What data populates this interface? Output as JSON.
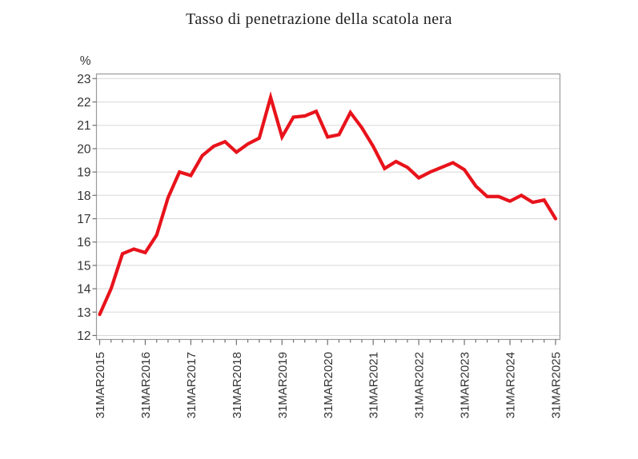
{
  "colors": {
    "line": "#e8131b",
    "grid": "#d8d8d8",
    "frame": "#9a9a9a",
    "tick": "#707070",
    "label_text": "#333333",
    "title_text": "#1f1f1f",
    "background": "#ffffff"
  },
  "chart_data": {
    "type": "line",
    "title": "Tasso di penetrazione della scatola nera",
    "xlabel": "",
    "ylabel": "%",
    "ylim": [
      12,
      23
    ],
    "y_ticks": [
      12,
      13,
      14,
      15,
      16,
      17,
      18,
      19,
      20,
      21,
      22,
      23
    ],
    "x_major_tick_labels": [
      "31MAR2015",
      "31MAR2016",
      "31MAR2017",
      "31MAR2018",
      "31MAR2019",
      "31MAR2020",
      "31MAR2021",
      "31MAR2022",
      "31MAR2023",
      "31MAR2024",
      "31MAR2025"
    ],
    "x_minor_ticks_per_major": 4,
    "grid": "horizontal-only",
    "legend": "none",
    "categories": [
      "31MAR2015",
      "30JUN2015",
      "30SEP2015",
      "31DEC2015",
      "31MAR2016",
      "30JUN2016",
      "30SEP2016",
      "31DEC2016",
      "31MAR2017",
      "30JUN2017",
      "30SEP2017",
      "31DEC2017",
      "31MAR2018",
      "30JUN2018",
      "30SEP2018",
      "31DEC2018",
      "31MAR2019",
      "30JUN2019",
      "30SEP2019",
      "31DEC2019",
      "31MAR2020",
      "30JUN2020",
      "30SEP2020",
      "31DEC2020",
      "31MAR2021",
      "30JUN2021",
      "30SEP2021",
      "31DEC2021",
      "31MAR2022",
      "30JUN2022",
      "30SEP2022",
      "31DEC2022",
      "31MAR2023",
      "30JUN2023",
      "30SEP2023",
      "31DEC2023",
      "31MAR2024",
      "30JUN2024",
      "30SEP2024",
      "31DEC2024",
      "31MAR2025"
    ],
    "values": [
      12.9,
      14.0,
      15.5,
      15.7,
      15.55,
      16.3,
      17.9,
      19.0,
      18.85,
      19.7,
      20.1,
      20.3,
      19.85,
      20.2,
      20.45,
      22.2,
      20.5,
      21.35,
      21.4,
      21.6,
      20.5,
      20.6,
      21.55,
      20.9,
      20.1,
      19.15,
      19.45,
      19.2,
      18.75,
      19.0,
      19.2,
      19.4,
      19.1,
      18.4,
      17.95,
      17.95,
      17.75,
      18.0,
      17.7,
      17.8,
      17.0
    ]
  }
}
